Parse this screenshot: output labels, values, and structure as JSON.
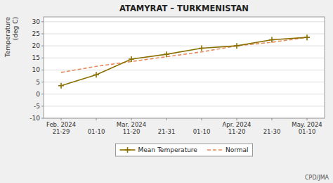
{
  "chart_data": {
    "type": "line",
    "title": "ATAMYRAT – TURKMENISTAN",
    "ylabel": "Temperature\n(deg C)",
    "categories": [
      "Feb. 2024\n21-29",
      "01-10",
      "Mar. 2024\n11-20",
      "21-31",
      "01-10",
      "Apr. 2024\n11-20",
      "21-30",
      "May. 2024\n01-10"
    ],
    "series": [
      {
        "name": "Mean Temperature",
        "color": "#8B7000",
        "marker": "plus",
        "line_style": "solid",
        "values": [
          3.5,
          8.0,
          14.5,
          16.5,
          19.0,
          20.0,
          22.5,
          23.5
        ]
      },
      {
        "name": "Normal",
        "color": "#E8895A",
        "marker": "none",
        "line_style": "dashed",
        "values": [
          9.0,
          11.5,
          13.5,
          15.5,
          17.5,
          20.0,
          21.5,
          23.5
        ]
      }
    ],
    "ylim": [
      -10,
      32
    ],
    "yticks": [
      -10,
      -5,
      0,
      5,
      10,
      15,
      20,
      25,
      30
    ],
    "grid": true,
    "legend": "bottom",
    "annotations": [
      "CPD/JMA"
    ]
  }
}
